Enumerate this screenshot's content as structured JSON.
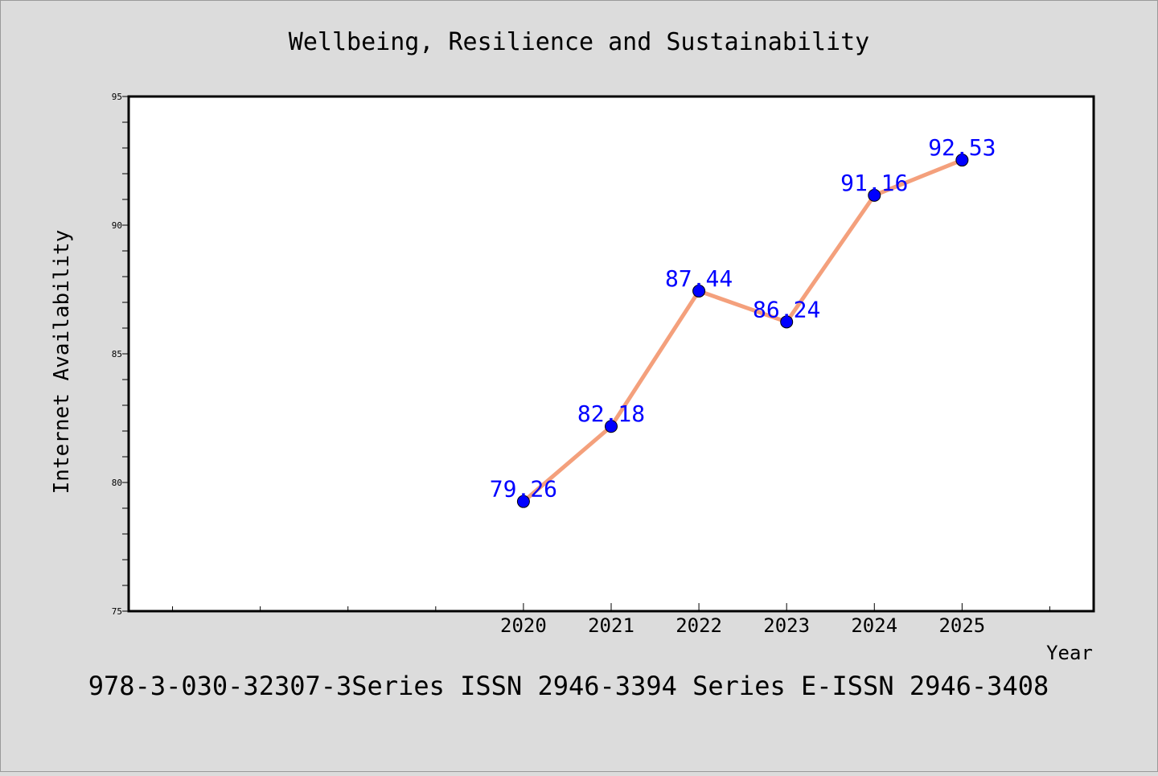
{
  "chart_data": {
    "type": "line",
    "title": "Wellbeing, Resilience and Sustainability",
    "xlabel": "Year",
    "ylabel": "Internet Availability",
    "footer": "978-3-030-32307-3Series ISSN 2946-3394 Series E-ISSN 2946-3408",
    "x": [
      2020,
      2021,
      2022,
      2023,
      2024,
      2025
    ],
    "series": [
      {
        "values": [
          79.26,
          82.18,
          87.44,
          86.24,
          91.16,
          92.53
        ],
        "data_labels": [
          "79.26",
          "82.18",
          "87.44",
          "86.24",
          "91.16",
          "92.53"
        ]
      }
    ],
    "xlim": [
      2015.5,
      2026.5
    ],
    "ylim": [
      75,
      95
    ],
    "yticks": [
      75,
      80,
      85,
      90,
      95
    ],
    "ytick_labels": [
      "75",
      "80",
      "85",
      "90",
      "95"
    ],
    "xtick_labels": [
      "2020",
      "2021",
      "2022",
      "2023",
      "2024",
      "2025"
    ],
    "grid": false,
    "legend": "none",
    "colors": {
      "background": "#dcdcdc",
      "plot_area": "#ffffff",
      "line": "#f4a07c",
      "marker": "#0000ff",
      "data_label": "#0000ff",
      "axis": "#000000"
    }
  }
}
